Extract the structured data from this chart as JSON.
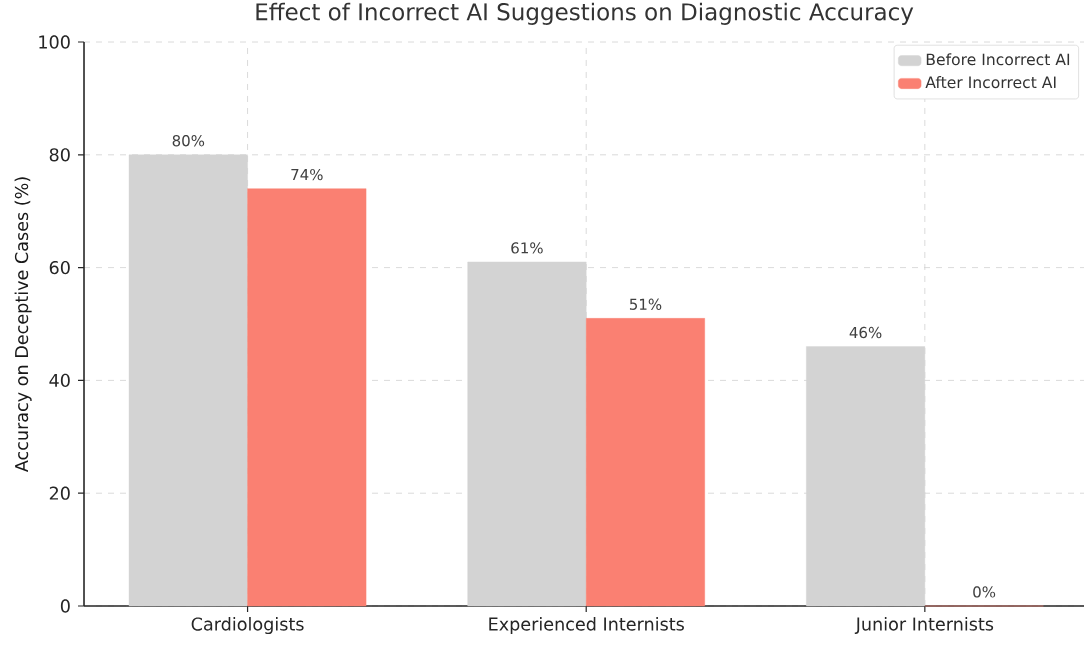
{
  "chart_data": {
    "type": "bar",
    "title": "Effect of Incorrect AI Suggestions on Diagnostic Accuracy",
    "ylabel": "Accuracy on Deceptive Cases (%)",
    "categories": [
      "Cardiologists",
      "Experienced Internists",
      "Junior Internists"
    ],
    "series": [
      {
        "name": "Before Incorrect AI",
        "color": "#d3d3d3",
        "values": [
          80,
          61,
          46
        ],
        "value_labels": [
          "80%",
          "61%",
          "46%"
        ]
      },
      {
        "name": "After Incorrect AI",
        "color": "#fa8072",
        "values": [
          74,
          51,
          0
        ],
        "value_labels": [
          "74%",
          "51%",
          "0%"
        ]
      }
    ],
    "ylim": [
      0,
      100
    ],
    "yticks": [
      0,
      20,
      40,
      60,
      80,
      100
    ],
    "grid": true,
    "legend": "top right"
  }
}
